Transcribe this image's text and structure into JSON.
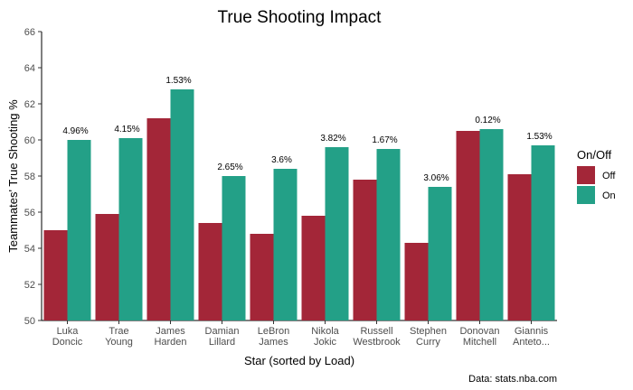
{
  "chart_data": {
    "type": "bar",
    "title": "True Shooting Impact",
    "xlabel": "Star (sorted by Load)",
    "ylabel": "Teammates' True Shooting %",
    "ylim": [
      50,
      66
    ],
    "yticks": [
      50,
      52,
      54,
      56,
      58,
      60,
      62,
      64,
      66
    ],
    "grid": false,
    "categories": [
      [
        "Luka",
        "Doncic"
      ],
      [
        "Trae",
        "Young"
      ],
      [
        "James",
        "Harden"
      ],
      [
        "Damian",
        "Lillard"
      ],
      [
        "LeBron",
        "James"
      ],
      [
        "Nikola",
        "Jokic"
      ],
      [
        "Russell",
        "Westbrook"
      ],
      [
        "Stephen",
        "Curry"
      ],
      [
        "Donovan",
        "Mitchell"
      ],
      [
        "Giannis",
        "Anteto..."
      ]
    ],
    "series": [
      {
        "name": "Off",
        "color": "#a32638",
        "values": [
          55.0,
          55.9,
          61.2,
          55.4,
          54.8,
          55.8,
          57.8,
          54.3,
          60.5,
          58.1
        ]
      },
      {
        "name": "On",
        "color": "#23a087",
        "values": [
          60.0,
          60.1,
          62.8,
          58.0,
          58.4,
          59.6,
          59.5,
          57.4,
          60.6,
          59.7
        ]
      }
    ],
    "data_labels": [
      "4.96%",
      "4.15%",
      "1.53%",
      "2.65%",
      "3.6%",
      "3.82%",
      "1.67%",
      "3.06%",
      "0.12%",
      "1.53%"
    ],
    "legend": {
      "title": "On/Off",
      "position": "right"
    },
    "caption": "Data: stats.nba.com"
  }
}
